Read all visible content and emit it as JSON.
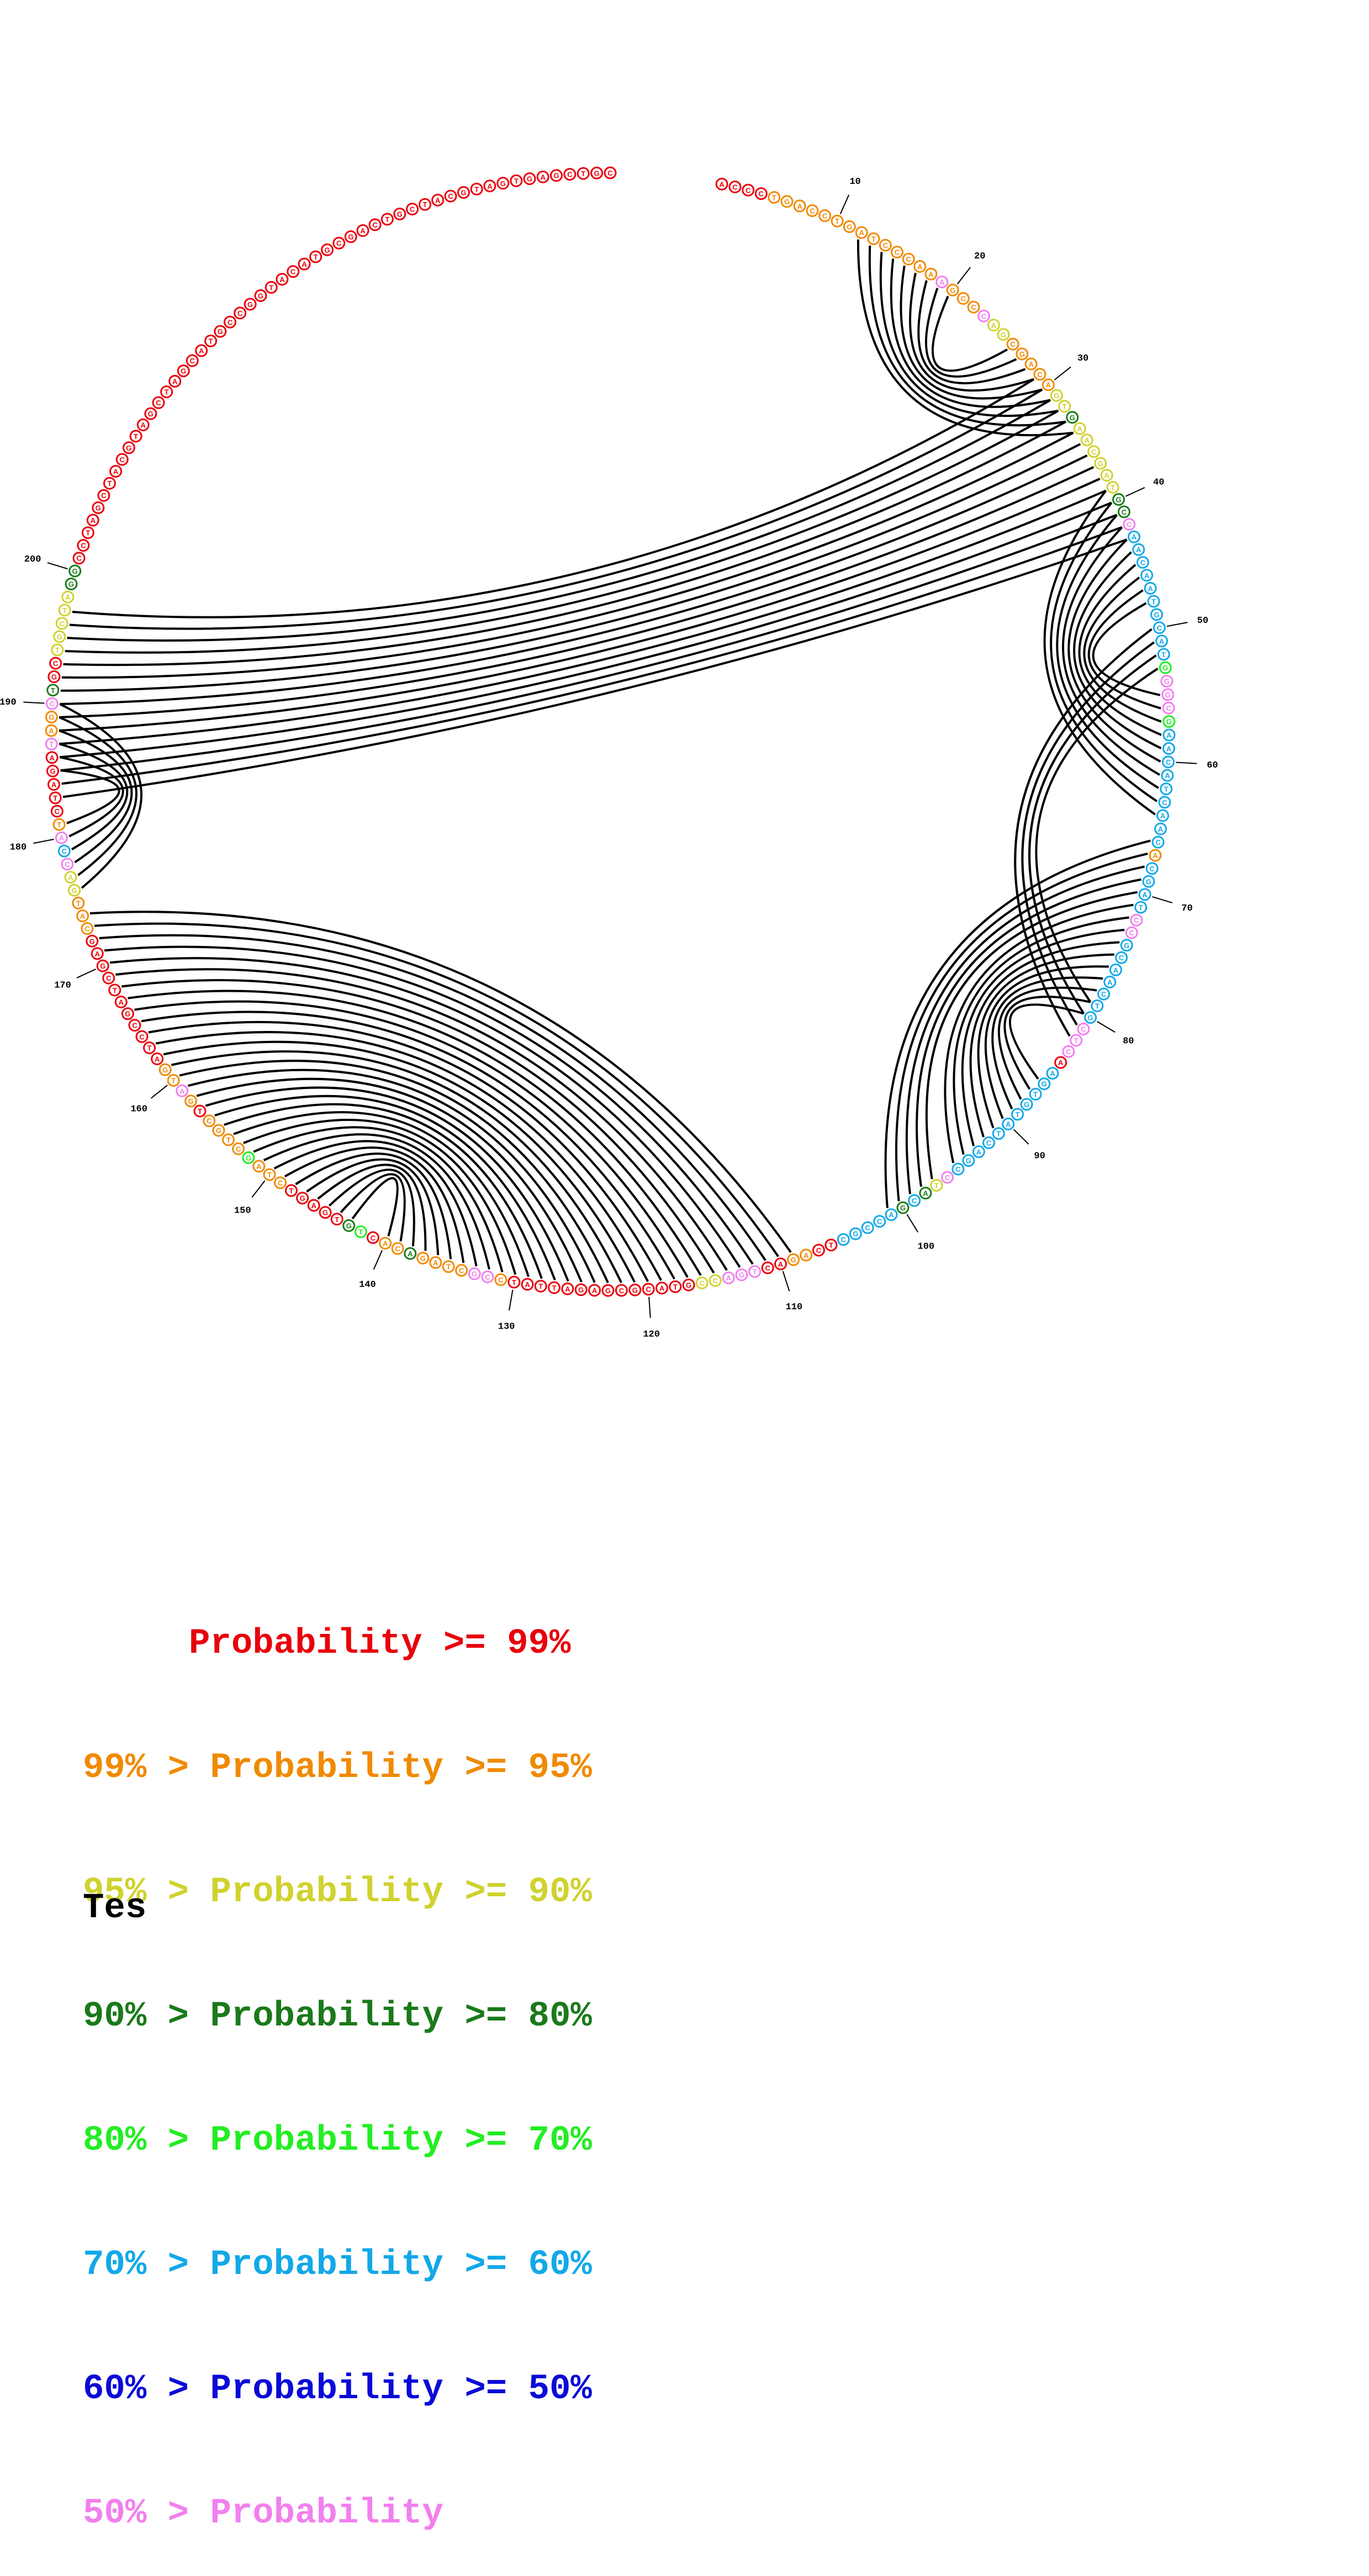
{
  "title": "Tes",
  "sequence": "ACCCTGACCTGATCCCAAAGCCCAGCGACAGTGAACGATGCCAACAATGCATGGGCGAACATCAACACGATCCGCAACTGCTCAAGTGTATCAGCCTACGACCGCTCAGACTGACCGTACGCGAGATTATCCGCTAGACACTGTGAGTCTAGCTGCTGATGATCCGATCGAGCATGACCATCTAGATAGCTGCTGCTAGGCCTAGCTACGTAGCTAGCATGCCGGTACATGCGACTGCTACGTAGTGAGCTGC",
  "base_prob_levels": [
    0,
    0,
    0,
    0,
    1,
    1,
    1,
    1,
    1,
    1,
    1,
    1,
    1,
    1,
    1,
    1,
    1,
    1,
    7,
    1,
    1,
    1,
    7,
    2,
    2,
    1,
    1,
    1,
    1,
    1,
    2,
    2,
    3,
    2,
    2,
    2,
    2,
    2,
    2,
    3,
    3,
    7,
    5,
    5,
    5,
    5,
    5,
    5,
    5,
    5,
    5,
    5,
    4,
    7,
    7,
    7,
    4,
    5,
    5,
    5,
    5,
    5,
    5,
    5,
    5,
    5,
    1,
    5,
    5,
    5,
    5,
    7,
    7,
    5,
    5,
    5,
    5,
    5,
    5,
    5,
    7,
    7,
    7,
    0,
    5,
    5,
    5,
    5,
    5,
    5,
    5,
    5,
    5,
    5,
    5,
    7,
    2,
    3,
    5,
    3,
    5,
    5,
    5,
    5,
    5,
    0,
    0,
    1,
    1,
    0,
    0,
    7,
    7,
    7,
    2,
    2,
    0,
    0,
    0,
    0,
    0,
    0,
    0,
    0,
    0,
    0,
    0,
    0,
    0,
    0,
    1,
    7,
    7,
    1,
    1,
    1,
    1,
    3,
    1,
    1,
    0,
    4,
    3,
    0,
    0,
    0,
    0,
    0,
    1,
    1,
    1,
    4,
    1,
    1,
    1,
    1,
    0,
    1,
    7,
    1,
    1,
    0,
    0,
    0,
    0,
    0,
    0,
    0,
    0,
    0,
    0,
    0,
    1,
    1,
    1,
    2,
    2,
    7,
    5,
    7,
    1,
    0,
    0,
    0,
    0,
    0,
    7,
    1,
    1,
    7,
    3,
    0,
    0,
    2,
    2,
    2,
    2,
    2,
    3,
    3
  ],
  "position_labels": [
    "10",
    "20",
    "30",
    "40",
    "50",
    "60",
    "70",
    "80",
    "90",
    "100",
    "110",
    "120",
    "130",
    "140",
    "150",
    "160",
    "170",
    "180",
    "190",
    "200"
  ],
  "pairs": [
    [
      12,
      34
    ],
    [
      13,
      33
    ],
    [
      14,
      32
    ],
    [
      15,
      31
    ],
    [
      16,
      30
    ],
    [
      17,
      29
    ],
    [
      18,
      28
    ],
    [
      19,
      27
    ],
    [
      20,
      26
    ],
    [
      39,
      64
    ],
    [
      40,
      63
    ],
    [
      41,
      62
    ],
    [
      42,
      61
    ],
    [
      43,
      60
    ],
    [
      44,
      59
    ],
    [
      45,
      58
    ],
    [
      46,
      57
    ],
    [
      47,
      56
    ],
    [
      48,
      55
    ],
    [
      50,
      82
    ],
    [
      51,
      81
    ],
    [
      52,
      80
    ],
    [
      53,
      79
    ],
    [
      66,
      101
    ],
    [
      67,
      100
    ],
    [
      68,
      99
    ],
    [
      69,
      98
    ],
    [
      70,
      97
    ],
    [
      71,
      95
    ],
    [
      72,
      94
    ],
    [
      73,
      93
    ],
    [
      74,
      92
    ],
    [
      75,
      91
    ],
    [
      76,
      90
    ],
    [
      77,
      89
    ],
    [
      78,
      88
    ],
    [
      79,
      87
    ],
    [
      80,
      86
    ],
    [
      109,
      174
    ],
    [
      110,
      173
    ],
    [
      111,
      172
    ],
    [
      112,
      171
    ],
    [
      113,
      170
    ],
    [
      114,
      169
    ],
    [
      115,
      168
    ],
    [
      116,
      167
    ],
    [
      117,
      166
    ],
    [
      118,
      165
    ],
    [
      119,
      164
    ],
    [
      120,
      163
    ],
    [
      121,
      162
    ],
    [
      122,
      161
    ],
    [
      123,
      160
    ],
    [
      124,
      159
    ],
    [
      125,
      158
    ],
    [
      126,
      157
    ],
    [
      127,
      156
    ],
    [
      128,
      155
    ],
    [
      129,
      154
    ],
    [
      130,
      153
    ],
    [
      131,
      152
    ],
    [
      132,
      151
    ],
    [
      133,
      150
    ],
    [
      134,
      149
    ],
    [
      135,
      148
    ],
    [
      136,
      147
    ],
    [
      137,
      146
    ],
    [
      138,
      145
    ],
    [
      139,
      144
    ],
    [
      140,
      143
    ],
    [
      176,
      190
    ],
    [
      177,
      189
    ],
    [
      178,
      188
    ],
    [
      179,
      187
    ],
    [
      180,
      186
    ],
    [
      181,
      185
    ],
    [
      183,
      43
    ],
    [
      184,
      42
    ],
    [
      185,
      41
    ],
    [
      186,
      40
    ],
    [
      187,
      39
    ],
    [
      188,
      38
    ],
    [
      189,
      37
    ],
    [
      190,
      36
    ],
    [
      191,
      35
    ],
    [
      192,
      34
    ],
    [
      193,
      33
    ],
    [
      194,
      32
    ],
    [
      195,
      31
    ],
    [
      196,
      30
    ],
    [
      197,
      29
    ]
  ],
  "legend": {
    "lines": [
      {
        "text": "     Probability >= 99%",
        "color": "#e8000b"
      },
      {
        "text": "99% > Probability >= 95%",
        "color": "#f08a00"
      },
      {
        "text": "95% > Probability >= 90%",
        "color": "#cfd22e"
      },
      {
        "text": "90% > Probability >= 80%",
        "color": "#1a7a1a"
      },
      {
        "text": "80% > Probability >= 70%",
        "color": "#22ee22"
      },
      {
        "text": "70% > Probability >= 60%",
        "color": "#12a8e8"
      },
      {
        "text": "60% > Probability >= 50%",
        "color": "#0a0ad8"
      },
      {
        "text": "50% > Probability",
        "color": "#f27fee"
      }
    ]
  },
  "level_colors": [
    "#e8000b",
    "#f08a00",
    "#cfd22e",
    "#1a7a1a",
    "#22ee22",
    "#12a8e8",
    "#0a0ad8",
    "#f27fee"
  ]
}
